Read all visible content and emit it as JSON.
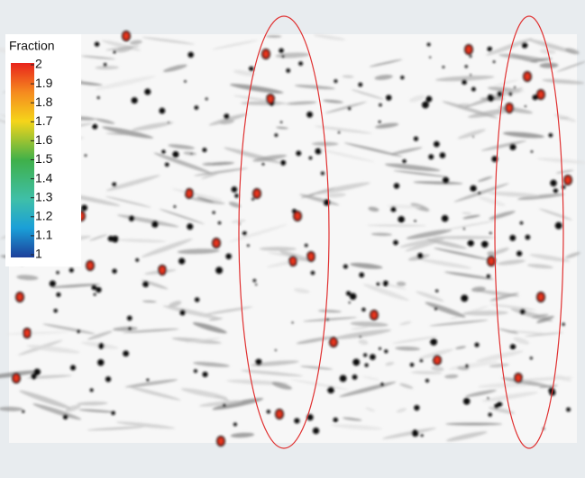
{
  "legend": {
    "title": "Fraction",
    "ticks": [
      2,
      1.9,
      1.8,
      1.7,
      1.6,
      1.5,
      1.4,
      1.3,
      1.2,
      1.1,
      1
    ]
  }
}
